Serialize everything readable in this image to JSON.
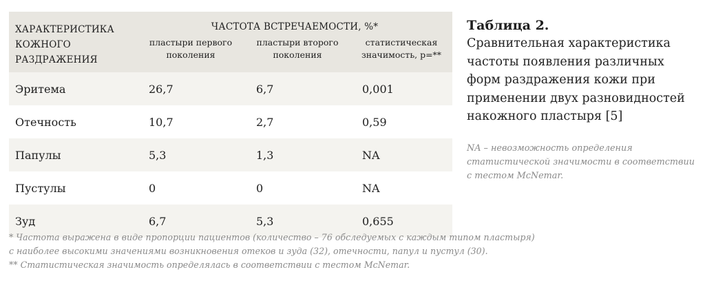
{
  "table": {
    "row_header": "ХАРАКТЕРИСТИКА КОЖНОГО РАЗДРАЖЕНИЯ",
    "group_header": "ЧАСТОТА ВСТРЕЧАЕМОСТИ, %*",
    "columns": [
      "пластыри первого поколения",
      "пластыри второго поколения",
      "статистическая значимость, p=**"
    ],
    "rows": [
      {
        "label": "Эритема",
        "values": [
          "26,7",
          "6,7",
          "0,001"
        ]
      },
      {
        "label": "Отечность",
        "values": [
          "10,7",
          "2,7",
          "0,59"
        ]
      },
      {
        "label": "Папулы",
        "values": [
          "5,3",
          "1,3",
          "NA"
        ]
      },
      {
        "label": "Пустулы",
        "values": [
          "0",
          "0",
          "NA"
        ]
      },
      {
        "label": "Зуд",
        "values": [
          "6,7",
          "5,3",
          "0,655"
        ]
      }
    ]
  },
  "footnotes": [
    "* Частота выражена в виде пропорции пациентов (количество – 76 обследуемых с каждым типом пластыря)",
    "с наиболее высокими значениями возникновения отеков и зуда (32), отечности, папул и пустул (30).",
    "** Статистическая значимость определялась в соответствии с тестом McNemar."
  ],
  "caption": {
    "title": "Таблица 2.",
    "text": "Сравнительная характеристика частоты появления различных форм раздражения кожи при применении двух разновидностей накожного пластыря [5]",
    "note": "NA – невозможность определения статистической значимости в соответствии с тестом McNemar."
  }
}
